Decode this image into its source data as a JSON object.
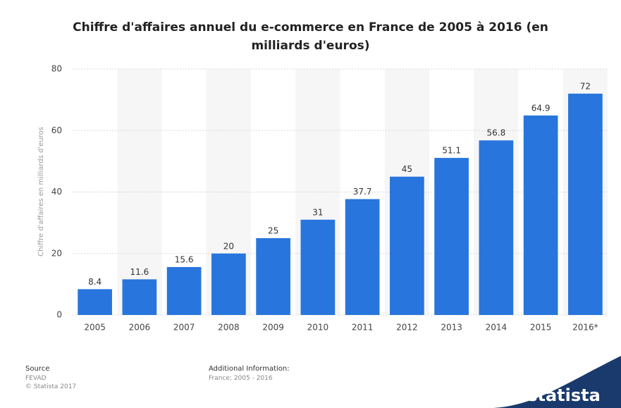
{
  "chart_data": {
    "type": "bar",
    "title": "Chiffre d'affaires annuel du e-commerce en France de 2005 à 2016 (en milliards d'euros)",
    "y_label": "Chiffre d'affaires en milliards d'euros",
    "categories": [
      "2005",
      "2006",
      "2007",
      "2008",
      "2009",
      "2010",
      "2011",
      "2012",
      "2013",
      "2014",
      "2015",
      "2016*"
    ],
    "values": [
      8.4,
      11.6,
      15.6,
      20,
      25,
      31,
      37.7,
      45,
      51.1,
      56.8,
      64.9,
      72
    ],
    "color": "#2876dd",
    "ylim": [
      0,
      80
    ],
    "yticks": [
      0,
      20,
      40,
      60,
      80
    ],
    "grid": true
  },
  "footer": {
    "source_title": "Source",
    "source": "FEVAD",
    "copyright": "© Statista 2017",
    "info_title": "Additional Information:",
    "info": "France; 2005 - 2016",
    "logo": "statista"
  }
}
